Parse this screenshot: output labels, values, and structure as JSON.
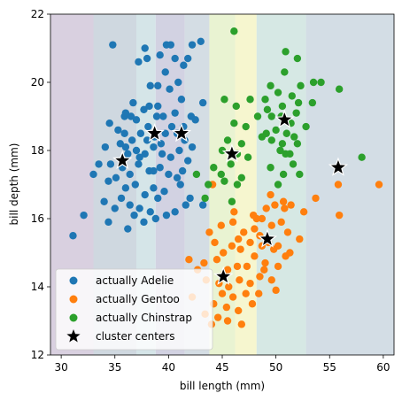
{
  "chart_data": {
    "type": "scatter",
    "title": "",
    "xlabel": "bill length (mm)",
    "ylabel": "bill depth (mm)",
    "xlim": [
      29,
      61
    ],
    "ylim": [
      12,
      22
    ],
    "xticks": [
      "30",
      "35",
      "40",
      "45",
      "50",
      "55",
      "60"
    ],
    "yticks": [
      "12",
      "14",
      "16",
      "18",
      "20",
      "22"
    ],
    "grid": false,
    "legend_position": "lower-left",
    "background_regions": [
      {
        "x_from": 29.0,
        "x_to": 33.0,
        "color": "#d9d0e0"
      },
      {
        "x_from": 33.0,
        "x_to": 37.0,
        "color": "#cfd8e0"
      },
      {
        "x_from": 37.0,
        "x_to": 38.8,
        "color": "#d5e5e8"
      },
      {
        "x_from": 38.8,
        "x_to": 41.5,
        "color": "#d2d2e2"
      },
      {
        "x_from": 41.5,
        "x_to": 43.8,
        "color": "#d4dde4"
      },
      {
        "x_from": 43.8,
        "x_to": 46.2,
        "color": "#e9f3d2"
      },
      {
        "x_from": 46.2,
        "x_to": 48.2,
        "color": "#f6f6cf"
      },
      {
        "x_from": 48.2,
        "x_to": 52.8,
        "color": "#d6e8e4"
      },
      {
        "x_from": 52.8,
        "x_to": 61.0,
        "color": "#d3dde5"
      }
    ],
    "series": [
      {
        "name": "actually Adelie",
        "color": "#1f77b4",
        "marker": "circle",
        "points": [
          [
            34.8,
            21.1
          ],
          [
            37.8,
            21.0
          ],
          [
            39.8,
            21.1
          ],
          [
            40.2,
            21.1
          ],
          [
            42.2,
            21.1
          ],
          [
            43.0,
            21.2
          ],
          [
            39.2,
            20.8
          ],
          [
            40.6,
            20.7
          ],
          [
            41.8,
            20.7
          ],
          [
            37.2,
            20.6
          ],
          [
            38.0,
            20.7
          ],
          [
            41.4,
            20.5
          ],
          [
            39.7,
            20.3
          ],
          [
            40.9,
            20.0
          ],
          [
            38.3,
            19.9
          ],
          [
            39.0,
            19.9
          ],
          [
            40.1,
            19.8
          ],
          [
            36.7,
            19.4
          ],
          [
            39.0,
            19.3
          ],
          [
            41.2,
            19.5
          ],
          [
            43.2,
            19.4
          ],
          [
            35.9,
            19.0
          ],
          [
            36.5,
            19.0
          ],
          [
            37.7,
            19.2
          ],
          [
            38.9,
            19.0
          ],
          [
            40.6,
            19.1
          ],
          [
            42.1,
            19.0
          ],
          [
            36.0,
            19.1
          ],
          [
            37.0,
            18.9
          ],
          [
            38.2,
            19.3
          ],
          [
            39.5,
            19.0
          ],
          [
            40.3,
            18.7
          ],
          [
            41.4,
            18.7
          ],
          [
            42.5,
            18.9
          ],
          [
            34.5,
            18.8
          ],
          [
            35.3,
            18.6
          ],
          [
            35.9,
            18.5
          ],
          [
            36.6,
            18.3
          ],
          [
            37.4,
            18.5
          ],
          [
            38.1,
            18.7
          ],
          [
            38.7,
            18.4
          ],
          [
            39.7,
            18.5
          ],
          [
            40.8,
            18.5
          ],
          [
            41.5,
            18.3
          ],
          [
            42.2,
            18.1
          ],
          [
            34.1,
            18.1
          ],
          [
            35.5,
            18.2
          ],
          [
            36.2,
            17.9
          ],
          [
            37.0,
            18.0
          ],
          [
            37.8,
            17.9
          ],
          [
            38.6,
            18.1
          ],
          [
            39.4,
            17.9
          ],
          [
            40.2,
            17.8
          ],
          [
            41.0,
            18.0
          ],
          [
            41.8,
            17.7
          ],
          [
            34.6,
            17.6
          ],
          [
            35.7,
            17.5
          ],
          [
            36.4,
            17.3
          ],
          [
            37.2,
            17.6
          ],
          [
            38.2,
            17.4
          ],
          [
            39.2,
            17.5
          ],
          [
            40.0,
            17.3
          ],
          [
            40.8,
            17.2
          ],
          [
            33.5,
            17.6
          ],
          [
            34.4,
            17.1
          ],
          [
            35.1,
            17.2
          ],
          [
            36.0,
            16.9
          ],
          [
            36.9,
            17.0
          ],
          [
            37.8,
            16.7
          ],
          [
            38.6,
            16.9
          ],
          [
            39.6,
            16.8
          ],
          [
            41.1,
            17.0
          ],
          [
            42.0,
            16.6
          ],
          [
            35.6,
            16.6
          ],
          [
            36.4,
            16.4
          ],
          [
            37.3,
            16.3
          ],
          [
            38.3,
            16.2
          ],
          [
            39.0,
            16.6
          ],
          [
            33.0,
            17.3
          ],
          [
            34.0,
            16.5
          ],
          [
            35.0,
            16.3
          ],
          [
            36.8,
            16.1
          ],
          [
            38.8,
            16.0
          ],
          [
            37.7,
            15.9
          ],
          [
            39.8,
            16.1
          ],
          [
            40.6,
            16.2
          ],
          [
            41.6,
            16.4
          ],
          [
            32.1,
            16.1
          ],
          [
            34.4,
            15.9
          ],
          [
            31.1,
            15.5
          ],
          [
            36.2,
            15.7
          ],
          [
            43.2,
            16.4
          ],
          [
            41.3,
            17.4
          ],
          [
            38.0,
            18.3
          ],
          [
            37.3,
            17.8
          ],
          [
            36.0,
            18.1
          ],
          [
            39.3,
            18.2
          ],
          [
            38.6,
            17.4
          ]
        ]
      },
      {
        "name": "actually Gentoo",
        "color": "#ff7f0e",
        "marker": "circle",
        "points": [
          [
            44.1,
            17.0
          ],
          [
            46.1,
            16.2
          ],
          [
            48.7,
            16.0
          ],
          [
            49.1,
            16.3
          ],
          [
            49.9,
            16.4
          ],
          [
            50.7,
            16.5
          ],
          [
            51.4,
            16.4
          ],
          [
            52.6,
            16.2
          ],
          [
            53.7,
            16.6
          ],
          [
            55.9,
            16.1
          ],
          [
            59.6,
            17.0
          ],
          [
            55.8,
            17.0
          ],
          [
            48.2,
            16.0
          ],
          [
            49.6,
            15.8
          ],
          [
            50.5,
            15.9
          ],
          [
            48.5,
            15.5
          ],
          [
            49.3,
            15.3
          ],
          [
            50.2,
            15.2
          ],
          [
            51.1,
            15.6
          ],
          [
            52.2,
            15.4
          ],
          [
            47.6,
            15.3
          ],
          [
            46.7,
            15.1
          ],
          [
            45.9,
            15.2
          ],
          [
            45.1,
            15.0
          ],
          [
            44.3,
            15.3
          ],
          [
            48.0,
            14.9
          ],
          [
            49.0,
            14.7
          ],
          [
            50.2,
            14.6
          ],
          [
            47.3,
            14.6
          ],
          [
            46.4,
            14.6
          ],
          [
            45.5,
            14.5
          ],
          [
            44.5,
            14.8
          ],
          [
            43.3,
            14.7
          ],
          [
            48.5,
            14.3
          ],
          [
            49.6,
            14.2
          ],
          [
            47.6,
            14.1
          ],
          [
            46.6,
            14.2
          ],
          [
            45.6,
            14.0
          ],
          [
            44.7,
            14.1
          ],
          [
            43.5,
            14.2
          ],
          [
            45.0,
            13.8
          ],
          [
            46.0,
            13.7
          ],
          [
            47.2,
            13.8
          ],
          [
            48.4,
            13.8
          ],
          [
            44.2,
            13.5
          ],
          [
            45.4,
            13.4
          ],
          [
            46.5,
            13.3
          ],
          [
            43.4,
            13.2
          ],
          [
            44.6,
            13.1
          ],
          [
            45.5,
            13.0
          ],
          [
            46.8,
            12.9
          ],
          [
            47.8,
            13.5
          ],
          [
            42.7,
            14.5
          ],
          [
            41.9,
            14.8
          ],
          [
            43.8,
            15.6
          ],
          [
            44.9,
            15.8
          ],
          [
            46.0,
            15.9
          ],
          [
            47.0,
            15.6
          ],
          [
            48.0,
            15.7
          ],
          [
            50.9,
            14.9
          ],
          [
            51.3,
            15.0
          ],
          [
            50.0,
            13.9
          ],
          [
            44.0,
            12.9
          ],
          [
            42.2,
            13.7
          ],
          [
            48.9,
            14.5
          ],
          [
            45.2,
            14.4
          ],
          [
            47.9,
            16.1
          ],
          [
            49.5,
            16.7
          ],
          [
            50.8,
            16.3
          ],
          [
            46.5,
            15.4
          ],
          [
            48.7,
            15.2
          ],
          [
            49.8,
            15.1
          ]
        ]
      },
      {
        "name": "actually Chinstrap",
        "color": "#2ca02c",
        "marker": "circle",
        "points": [
          [
            46.1,
            21.5
          ],
          [
            50.9,
            20.9
          ],
          [
            52.0,
            20.7
          ],
          [
            53.5,
            20.0
          ],
          [
            54.2,
            20.0
          ],
          [
            55.9,
            19.8
          ],
          [
            49.5,
            19.9
          ],
          [
            50.2,
            19.7
          ],
          [
            51.5,
            19.6
          ],
          [
            52.3,
            19.9
          ],
          [
            49.0,
            19.5
          ],
          [
            50.6,
            19.3
          ],
          [
            52.1,
            19.4
          ],
          [
            45.2,
            19.5
          ],
          [
            46.3,
            19.3
          ],
          [
            47.6,
            19.5
          ],
          [
            48.3,
            19.0
          ],
          [
            49.6,
            19.0
          ],
          [
            50.7,
            18.9
          ],
          [
            51.4,
            18.8
          ],
          [
            52.8,
            18.7
          ],
          [
            46.1,
            18.8
          ],
          [
            47.2,
            18.7
          ],
          [
            50.0,
            18.6
          ],
          [
            51.0,
            18.5
          ],
          [
            45.5,
            18.3
          ],
          [
            46.8,
            18.2
          ],
          [
            49.6,
            18.3
          ],
          [
            50.6,
            18.2
          ],
          [
            52.0,
            18.2
          ],
          [
            45.0,
            18.0
          ],
          [
            46.4,
            17.9
          ],
          [
            50.9,
            17.9
          ],
          [
            51.6,
            17.6
          ],
          [
            58.0,
            17.8
          ],
          [
            44.2,
            17.5
          ],
          [
            45.8,
            17.6
          ],
          [
            47.4,
            17.8
          ],
          [
            50.7,
            17.3
          ],
          [
            52.2,
            17.3
          ],
          [
            43.7,
            17.0
          ],
          [
            45.2,
            17.1
          ],
          [
            46.4,
            17.0
          ],
          [
            50.2,
            17.0
          ],
          [
            45.9,
            16.5
          ],
          [
            43.4,
            16.6
          ],
          [
            42.6,
            17.3
          ],
          [
            49.1,
            18.5
          ],
          [
            51.9,
            19.1
          ],
          [
            53.4,
            19.4
          ],
          [
            50.4,
            18.0
          ],
          [
            49.5,
            17.5
          ],
          [
            44.9,
            17.3
          ],
          [
            46.8,
            17.2
          ],
          [
            51.3,
            17.9
          ],
          [
            48.7,
            18.4
          ],
          [
            50.8,
            20.3
          ],
          [
            50.5,
            19.0
          ],
          [
            51.7,
            18.4
          ],
          [
            49.2,
            19.2
          ]
        ]
      },
      {
        "name": "cluster centers",
        "color": "#000000",
        "marker": "star",
        "points": [
          [
            35.7,
            17.7
          ],
          [
            38.7,
            18.5
          ],
          [
            41.2,
            18.5
          ],
          [
            45.9,
            17.9
          ],
          [
            45.1,
            14.3
          ],
          [
            49.2,
            15.4
          ],
          [
            50.8,
            18.9
          ],
          [
            55.8,
            17.5
          ]
        ]
      }
    ]
  }
}
